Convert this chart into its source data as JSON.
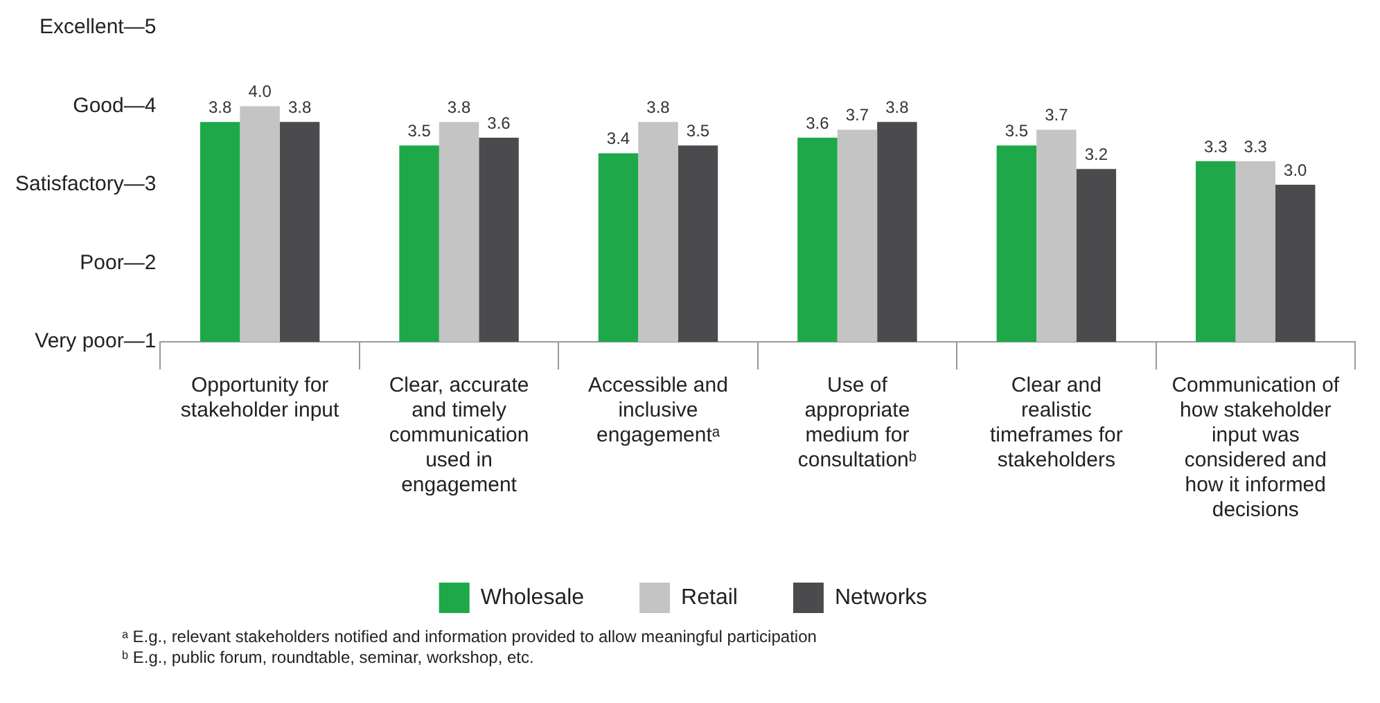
{
  "chart_data": {
    "type": "bar",
    "categories": [
      "Opportunity for stakeholder input",
      "Clear, accurate and timely communication used in engagement",
      "Accessible and inclusive engagementᵃ",
      "Use of appropriate medium for consultationᵇ",
      "Clear and realistic timeframes for stakeholders",
      "Communication of how stakeholder input was considered and how it informed decisions"
    ],
    "series": [
      {
        "name": "Wholesale",
        "color": "#1fa84a",
        "values": [
          3.8,
          3.5,
          3.4,
          3.6,
          3.5,
          3.3
        ],
        "value_labels": [
          "3.8",
          "3.5",
          "3.4",
          "3.6",
          "3.5",
          "3.3"
        ]
      },
      {
        "name": "Retail",
        "color": "#c4c4c4",
        "values": [
          4.0,
          3.8,
          3.8,
          3.7,
          3.7,
          3.3
        ],
        "value_labels": [
          "4.0",
          "3.8",
          "3.8",
          "3.7",
          "3.7",
          "3.3"
        ]
      },
      {
        "name": "Networks",
        "color": "#4b4b4d",
        "values": [
          3.8,
          3.6,
          3.5,
          3.8,
          3.2,
          3.0
        ],
        "value_labels": [
          "3.8",
          "3.6",
          "3.5",
          "3.8",
          "3.2",
          "3.0"
        ]
      }
    ],
    "ylim": [
      1,
      5
    ],
    "yticks": [
      {
        "value": 1,
        "label": "Very poor—1"
      },
      {
        "value": 2,
        "label": "Poor—2"
      },
      {
        "value": 3,
        "label": "Satisfactory—3"
      },
      {
        "value": 4,
        "label": "Good—4"
      },
      {
        "value": 5,
        "label": "Excellent—5"
      }
    ],
    "grid": false,
    "legend": "bottom",
    "annotations": [
      "ᵃ E.g., relevant stakeholders notified and information provided to allow meaningful participation",
      "ᵇ E.g., public forum, roundtable, seminar, workshop, etc."
    ]
  }
}
